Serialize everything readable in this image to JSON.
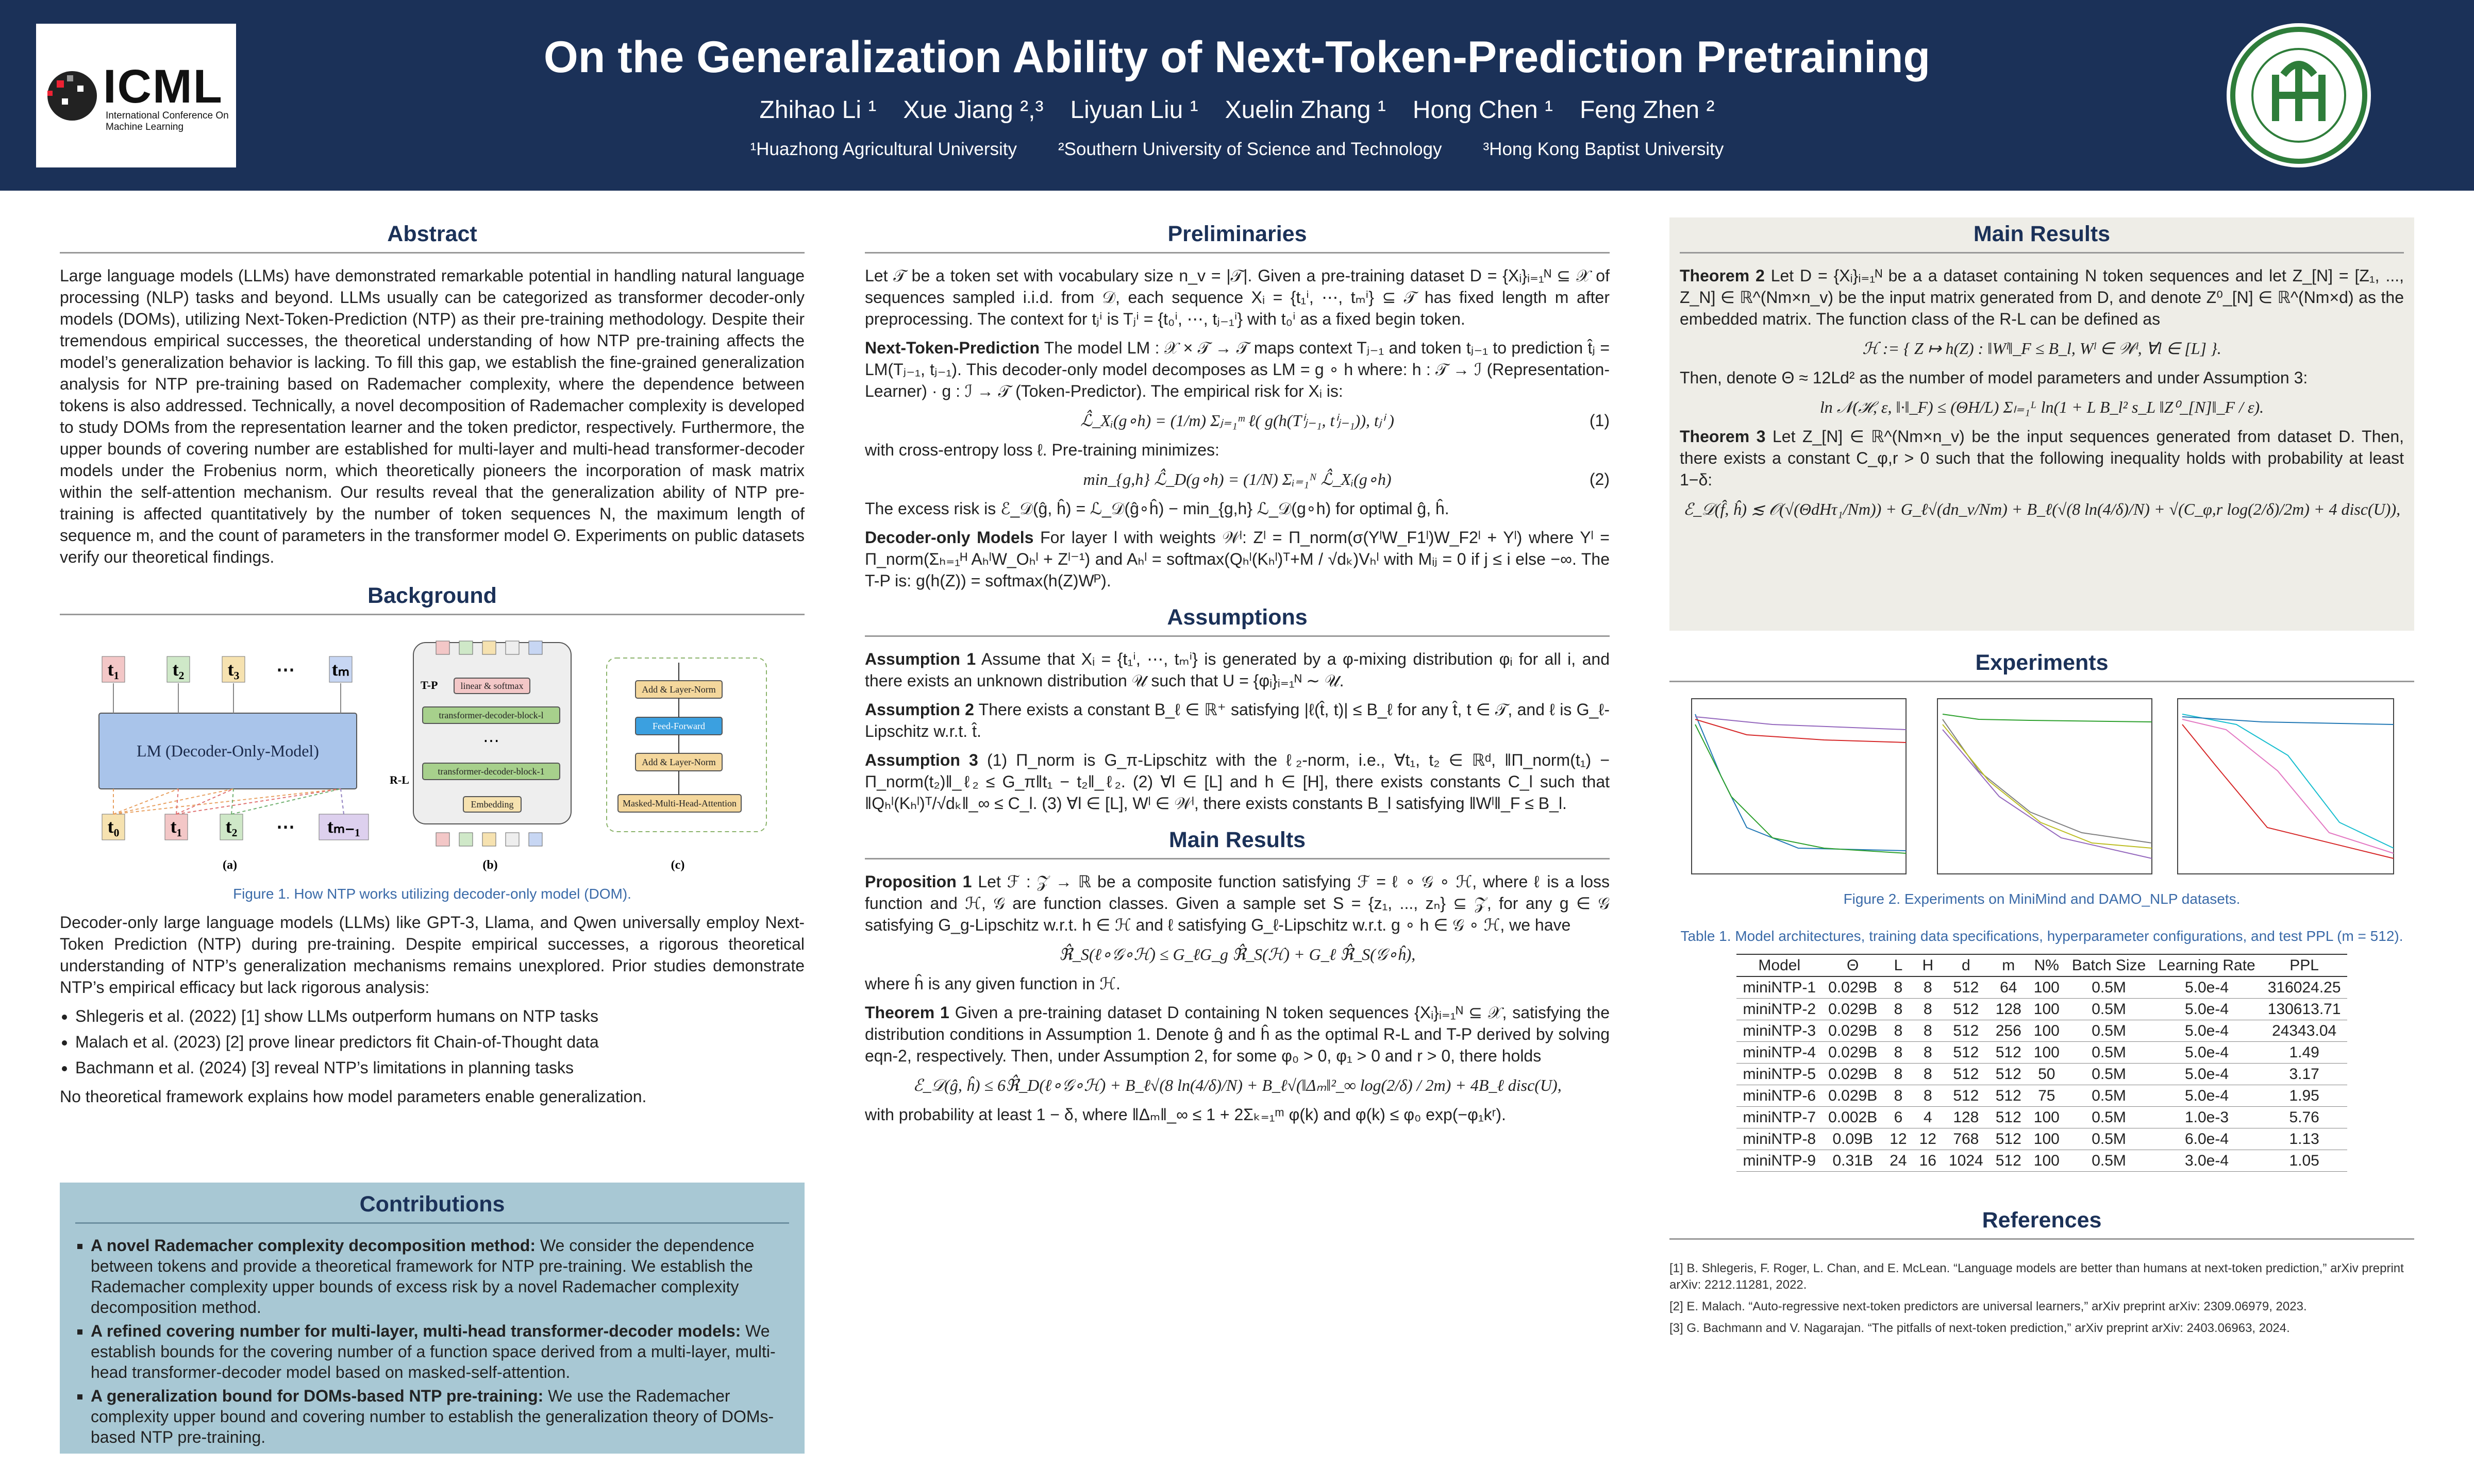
{
  "header": {
    "logo_text": "ICML",
    "logo_sub": "International Conference On Machine Learning",
    "title": "On the Generalization Ability of Next-Token-Prediction Pretraining",
    "authors": [
      "Zhihao Li ¹",
      "Xue Jiang ²,³",
      "Liyuan Liu ¹",
      "Xuelin Zhang ¹",
      "Hong Chen ¹",
      "Feng Zhen ²"
    ],
    "affiliations": [
      "¹Huazhong Agricultural University",
      "²Southern University of Science and Technology",
      "³Hong Kong Baptist University"
    ]
  },
  "abstract": {
    "heading": "Abstract",
    "text": "Large language models (LLMs) have demonstrated remarkable potential in handling natural language processing (NLP) tasks and beyond. LLMs usually can be categorized as transformer decoder-only models (DOMs), utilizing Next-Token-Prediction (NTP) as their pre-training methodology. Despite their tremendous empirical successes, the theoretical understanding of how NTP pre-training affects the model’s generalization behavior is lacking. To fill this gap, we establish the fine-grained generalization analysis for NTP pre-training based on Rademacher complexity, where the dependence between tokens is also addressed. Technically, a novel decomposition of Rademacher complexity is developed to study DOMs from the representation learner and the token predictor, respectively. Furthermore, the upper bounds of covering number are established for multi-layer and multi-head transformer-decoder models under the Frobenius norm, which theoretically pioneers the incorporation of mask matrix within the self-attention mechanism. Our results reveal that the generalization ability of NTP pre-training is affected quantitatively by the number of token sequences N, the maximum length of sequence m, and the count of parameters in the transformer model Θ. Experiments on public datasets verify our theoretical findings."
  },
  "background": {
    "heading": "Background",
    "figure": {
      "lm": "LM (Decoder-Only-Model)",
      "tokens_top": [
        "t₁",
        "t₂",
        "t₃",
        "⋯",
        "tₘ"
      ],
      "tokens_bottom": [
        "t₀",
        "t₁",
        "t₂",
        "⋯",
        "tₘ₋₁"
      ],
      "tp": "T-P",
      "rl": "R-L",
      "blocks": [
        "linear & softmax",
        "transformer-decoder-block-l",
        "⋯",
        "transformer-decoder-block-1",
        "Embedding"
      ],
      "layer": [
        "Add & Layer-Norm",
        "Feed-Forward",
        "Add & Layer-Norm",
        "Masked-Multi-Head-Attention"
      ],
      "panels": [
        "(a)",
        "(b)",
        "(c)"
      ],
      "caption": "Figure 1. How NTP works utilizing decoder-only model (DOM)."
    },
    "paragraph": "Decoder-only large language models (LLMs) like GPT-3, Llama, and Qwen universally employ Next-Token Prediction (NTP) during pre-training. Despite empirical successes, a rigorous theoretical understanding of NTP’s generalization mechanisms remains unexplored. Prior studies demonstrate NTP’s empirical efficacy but lack rigorous analysis:",
    "bullets": [
      "Shlegeris et al. (2022) [1] show LLMs outperform humans on NTP tasks",
      "Malach et al. (2023) [2] prove linear predictors fit Chain-of-Thought data",
      "Bachmann et al. (2024) [3] reveal NTP’s limitations in planning tasks"
    ],
    "closing": "No theoretical framework explains how model parameters enable generalization."
  },
  "contributions": {
    "heading": "Contributions",
    "items": [
      {
        "lead": "A novel Rademacher complexity decomposition method:",
        "text": "We consider the dependence between tokens and provide a theoretical framework for NTP pre-training. We establish the Rademacher complexity upper bounds of excess risk by a novel Rademacher complexity decomposition method."
      },
      {
        "lead": "A refined covering number for multi-layer, multi-head transformer-decoder models:",
        "text": "We establish bounds for the covering number of a function space derived from a multi-layer, multi-head transformer-decoder model based on masked-self-attention."
      },
      {
        "lead": "A generalization bound for DOMs-based NTP pre-training:",
        "text": "We use the Rademacher complexity upper bound and covering number to establish the generalization theory of DOMs-based NTP pre-training."
      }
    ]
  },
  "preliminaries": {
    "heading": "Preliminaries",
    "blocks": [
      {
        "text": "Let 𝒯 be a token set with vocabulary size n_v = |𝒯|. Given a pre-training dataset D = {Xᵢ}ᵢ₌₁ᴺ ⊆ 𝒳 of sequences sampled i.i.d. from 𝒟, each sequence Xᵢ = {t₁ⁱ, ⋯, tₘⁱ} ⊆ 𝒯 has fixed length m after preprocessing. The context for tⱼⁱ is Tⱼⁱ = {t₀ⁱ, ⋯, tⱼ₋₁ⁱ} with t₀ⁱ as a fixed begin token."
      },
      {
        "lead": "Next-Token-Prediction",
        "text": "The model LM : 𝒳 × 𝒯 → 𝒯 maps context Tⱼ₋₁ and token tⱼ₋₁ to prediction t̂ⱼ = LM(Tⱼ₋₁, tⱼ₋₁). This decoder-only model decomposes as LM = g ∘ h where: h : 𝒯 → ℐ (Representation-Learner) · g : ℐ → 𝒯 (Token-Predictor). The empirical risk for Xᵢ is:"
      },
      {
        "eq": "ℒ̂_Xᵢ(g∘h) = (1/m) Σⱼ₌₁ᵐ ℓ( g(h(Tⁱⱼ₋₁, tⁱⱼ₋₁)), tⱼⁱ )",
        "num": "(1)"
      },
      {
        "text": "with cross-entropy loss ℓ. Pre-training minimizes:"
      },
      {
        "eq": "min_{g,h} ℒ̂_D(g∘h) = (1/N) Σᵢ₌₁ᴺ ℒ̂_Xᵢ(g∘h)",
        "num": "(2)"
      },
      {
        "text": "The excess risk is ℰ_𝒟(ĝ, ĥ) = ℒ_𝒟(ĝ∘ĥ) − min_{g,h} ℒ_𝒟(g∘h) for optimal ĝ, ĥ."
      },
      {
        "lead": "Decoder-only Models",
        "text": "For layer l with weights 𝒲ˡ: Zˡ = Π_norm(σ(YˡW_F1ˡ)W_F2ˡ + Yˡ) where Yˡ = Π_norm(Σₕ₌₁ᴴ AₕˡW_Oₕˡ + Zˡ⁻¹) and Aₕˡ = softmax(Qₕˡ(Kₕˡ)ᵀ+M / √dₖ)Vₕˡ with Mᵢⱼ = 0 if j ≤ i else −∞. The T-P is: g(h(Z)) = softmax(h(Z)Wᴾ)."
      }
    ]
  },
  "assumptions": {
    "heading": "Assumptions",
    "items": [
      {
        "lead": "Assumption 1",
        "text": "Assume that Xᵢ = {t₁ⁱ, ⋯, tₘⁱ} is generated by a φ-mixing distribution φᵢ for all i, and there exists an unknown distribution 𝒰 such that U = {φᵢ}ᵢ₌₁ᴺ ∼ 𝒰."
      },
      {
        "lead": "Assumption 2",
        "text": "There exists a constant B_ℓ ∈ ℝ⁺ satisfying |ℓ(t̂, t)| ≤ B_ℓ for any t̂, t ∈ 𝒯, and ℓ is G_ℓ-Lipschitz w.r.t. t̂."
      },
      {
        "lead": "Assumption 3",
        "text": "(1) Π_norm is G_π-Lipschitz with the ℓ₂-norm, i.e., ∀t₁, t₂ ∈ ℝᵈ, ‖Π_norm(t₁) − Π_norm(t₂)‖_ℓ₂ ≤ G_π‖t₁ − t₂‖_ℓ₂. (2) ∀l ∈ [L] and h ∈ [H], there exists constants C_l such that ‖Qₕˡ(Kₕˡ)ᵀ/√dₖ‖_∞ ≤ C_l. (3) ∀l ∈ [L], Wˡ ∈ 𝒲ˡ, there exists constants B_l satisfying ‖Wˡ‖_F ≤ B_l."
      }
    ]
  },
  "main_results_middle": {
    "heading": "Main Results",
    "blocks": [
      {
        "lead": "Proposition 1",
        "text": "Let ℱ : 𝒵 → ℝ be a composite function satisfying ℱ = ℓ ∘ 𝒢 ∘ ℋ, where ℓ is a loss function and ℋ, 𝒢 are function classes. Given a sample set S = {z₁, ..., zₙ} ⊆ 𝒵, for any g ∈ 𝒢 satisfying G_g-Lipschitz w.r.t. h ∈ ℋ and ℓ satisfying G_ℓ-Lipschitz w.r.t. g ∘ h ∈ 𝒢 ∘ ℋ, we have"
      },
      {
        "eq": "ℜ̂_S(ℓ∘𝒢∘ℋ) ≤ G_ℓG_g ℜ̂_S(ℋ) + G_ℓ ℜ̂_S(𝒢∘ĥ),"
      },
      {
        "text": "where ĥ is any given function in ℋ."
      },
      {
        "lead": "Theorem 1",
        "text": "Given a pre-training dataset D containing N token sequences {Xᵢ}ᵢ₌₁ᴺ ⊆ 𝒳, satisfying the distribution conditions in Assumption 1. Denote ĝ and ĥ as the optimal R-L and T-P derived by solving eqn-2, respectively. Then, under Assumption 2, for some φ₀ > 0, φ₁ > 0 and r > 0, there holds"
      },
      {
        "eq": "ℰ_𝒟(ĝ, ĥ) ≤ 6ℜ̂_D(ℓ∘𝒢∘ℋ) + B_ℓ√(8 ln(4/δ)/N) + B_ℓ√(‖Δₘ‖²_∞ log(2/δ) / 2m) + 4B_ℓ disc(U),"
      },
      {
        "text": "with probability at least 1 − δ, where ‖Δₘ‖_∞ ≤ 1 + 2Σₖ₌₁ᵐ φ(k) and φ(k) ≤ φ₀ exp(−φ₁kʳ)."
      }
    ]
  },
  "main_results_right": {
    "heading": "Main Results",
    "blocks": [
      {
        "lead": "Theorem 2",
        "text": "Let D = {Xᵢ}ᵢ₌₁ᴺ be a a dataset containing N token sequences and let Z_[N] = [Z₁, ..., Z_N] ∈ ℝ^(Nm×n_v) be the input matrix generated from D, and denote Z⁰_[N] ∈ ℝ^(Nm×d) as the embedded matrix. The function class of the R-L can be defined as"
      },
      {
        "eq": "ℋ := { Z ↦ h(Z) : ‖Wˡ‖_F ≤ B_l, Wˡ ∈ 𝒲ˡ, ∀l ∈ [L] }."
      },
      {
        "text": "Then, denote Θ ≈ 12Ld² as the number of model parameters and under Assumption 3:"
      },
      {
        "eq": "ln 𝒩(ℋ, ε, ‖·‖_F) ≤ (ΘH/L) Σₗ₌₁ᴸ ln(1 + L B_l² s_L ‖Z⁰_[N]‖_F / ε)."
      },
      {
        "lead": "Theorem 3",
        "text": "Let Z_[N] ∈ ℝ^(Nm×n_v) be the input sequences generated from dataset D. Then, there exists a constant C_φ,r > 0 such that the following inequality holds with probability at least 1−δ:"
      },
      {
        "eq": "ℰ_𝒟(f̂, ĥ) ≲ 𝒪(√(ΘdHτ₁/Nm)) + G_ℓ√(dn_v/Nm) + B_ℓ(√(8 ln(4/δ)/N) + √(C_φ,r log(2/δ)/2m) + 4 disc(U)),"
      }
    ]
  },
  "experiments": {
    "heading": "Experiments",
    "caption": "Figure 2. Experiments on MiniMind and DAMO_NLP datasets.",
    "table_caption": "Table 1. Model architectures, training data specifications, hyperparameter configurations, and test PPL (m = 512).",
    "table": {
      "header": [
        "Model",
        "Θ",
        "L",
        "H",
        "d",
        "m",
        "N%",
        "Batch Size",
        "Learning Rate",
        "PPL"
      ],
      "rows": [
        [
          "miniNTP-1",
          "0.029B",
          "8",
          "8",
          "512",
          "64",
          "100",
          "0.5M",
          "5.0e-4",
          "316024.25"
        ],
        [
          "miniNTP-2",
          "0.029B",
          "8",
          "8",
          "512",
          "128",
          "100",
          "0.5M",
          "5.0e-4",
          "130613.71"
        ],
        [
          "miniNTP-3",
          "0.029B",
          "8",
          "8",
          "512",
          "256",
          "100",
          "0.5M",
          "5.0e-4",
          "24343.04"
        ],
        [
          "miniNTP-4",
          "0.029B",
          "8",
          "8",
          "512",
          "512",
          "100",
          "0.5M",
          "5.0e-4",
          "1.49"
        ],
        [
          "miniNTP-5",
          "0.029B",
          "8",
          "8",
          "512",
          "512",
          "50",
          "0.5M",
          "5.0e-4",
          "3.17"
        ],
        [
          "miniNTP-6",
          "0.029B",
          "8",
          "8",
          "512",
          "512",
          "75",
          "0.5M",
          "5.0e-4",
          "1.95"
        ],
        [
          "miniNTP-7",
          "0.002B",
          "6",
          "4",
          "128",
          "512",
          "100",
          "0.5M",
          "1.0e-3",
          "5.76"
        ],
        [
          "miniNTP-8",
          "0.09B",
          "12",
          "12",
          "768",
          "512",
          "100",
          "0.5M",
          "6.0e-4",
          "1.13"
        ],
        [
          "miniNTP-9",
          "0.31B",
          "24",
          "16",
          "1024",
          "512",
          "100",
          "0.5M",
          "3.0e-4",
          "1.05"
        ]
      ]
    }
  },
  "references": {
    "heading": "References",
    "items": [
      "[1] B. Shlegeris, F. Roger, L. Chan, and E. McLean. “Language models are better than humans at next-token prediction,” arXiv preprint arXiv: 2212.11281, 2022.",
      "[2] E. Malach. “Auto-regressive next-token predictors are universal learners,” arXiv preprint arXiv: 2309.06979, 2023.",
      "[3] G. Bachmann and V. Nagarajan. “The pitfalls of next-token prediction,” arXiv preprint arXiv: 2403.06963, 2024."
    ]
  }
}
